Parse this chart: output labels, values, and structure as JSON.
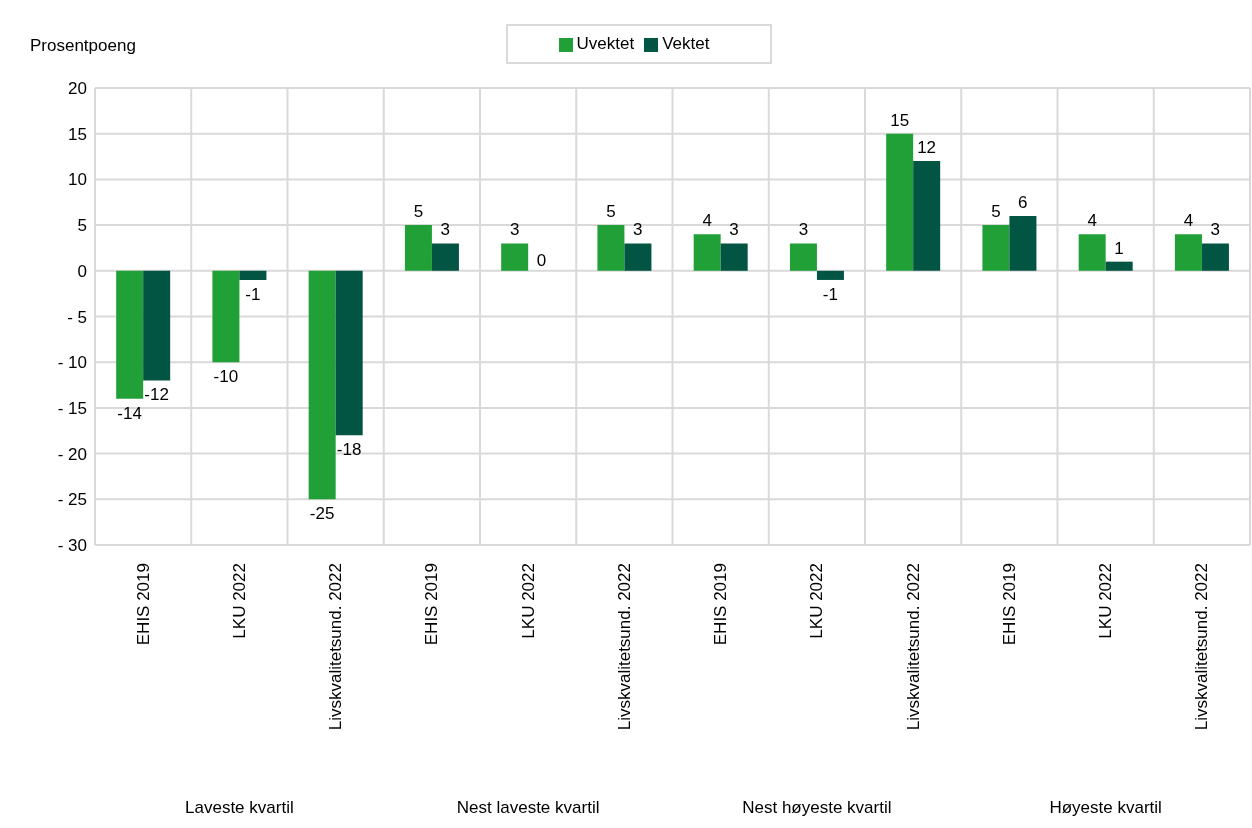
{
  "chart_data": {
    "type": "bar",
    "ylabel": "Prosentpoeng",
    "categories": [
      "EHIS 2019",
      "LKU 2022",
      "Livskvalitetsund. 2022",
      "EHIS 2019",
      "LKU 2022",
      "Livskvalitetsund. 2022",
      "EHIS 2019",
      "LKU 2022",
      "Livskvalitetsund. 2022",
      "EHIS 2019",
      "LKU 2022",
      "Livskvalitetsund. 2022"
    ],
    "series": [
      {
        "name": "Uvektet",
        "color": "#21a038",
        "values": [
          -14,
          -10,
          -25,
          5,
          3,
          5,
          4,
          3,
          15,
          5,
          4,
          4
        ]
      },
      {
        "name": "Vektet",
        "color": "#025443",
        "values": [
          -12,
          -1,
          -18,
          3,
          0,
          3,
          3,
          -1,
          12,
          6,
          1,
          3
        ]
      }
    ],
    "ylim": [
      -30,
      20
    ],
    "yticks": [
      {
        "value": -30,
        "label": "-  30"
      },
      {
        "value": -25,
        "label": "-  25"
      },
      {
        "value": -20,
        "label": "-  20"
      },
      {
        "value": -15,
        "label": "-  15"
      },
      {
        "value": -10,
        "label": "-  10"
      },
      {
        "value": -5,
        "label": "-  5"
      },
      0,
      5,
      10,
      15,
      20
    ],
    "annotations": [
      "Laveste kvartil",
      "Nest laveste kvartil",
      "Nest høyeste kvartil",
      "Høyeste kvartil"
    ],
    "grid": true,
    "legend": "top",
    "data_labels": true
  }
}
